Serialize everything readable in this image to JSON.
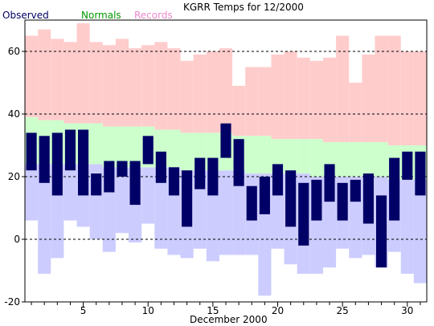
{
  "chart_data": {
    "type": "bar",
    "title": "KGRR Temps for 12/2000",
    "xlabel": "December 2000",
    "ylabel": "",
    "legend": [
      {
        "name": "Observed",
        "color": "#000066"
      },
      {
        "name": "Normals",
        "color": "#009900"
      },
      {
        "name": "Records",
        "color": "#ee88cc"
      }
    ],
    "ylim": [
      -20,
      70
    ],
    "xlim": [
      0.5,
      31.5
    ],
    "y_ticks": [
      -20,
      0,
      20,
      40,
      60
    ],
    "x_ticks": [
      5,
      10,
      15,
      20,
      25,
      30
    ],
    "grid_y": [
      0,
      20,
      40,
      60
    ],
    "colors": {
      "record_high": "#ffcccc",
      "record_low": "#ccccff",
      "normals": "#ccffcc",
      "observed": "#000066",
      "grid": "#000000"
    },
    "days": [
      1,
      2,
      3,
      4,
      5,
      6,
      7,
      8,
      9,
      10,
      11,
      12,
      13,
      14,
      15,
      16,
      17,
      18,
      19,
      20,
      21,
      22,
      23,
      24,
      25,
      26,
      27,
      28,
      29,
      30,
      31
    ],
    "record_high": [
      65,
      67,
      64,
      63,
      69,
      63,
      62,
      64,
      61,
      62,
      63,
      61,
      57,
      59,
      60,
      61,
      49,
      55,
      55,
      59,
      60,
      58,
      57,
      58,
      65,
      50,
      59,
      65,
      65,
      60,
      60
    ],
    "record_low": [
      6,
      -11,
      -6,
      6,
      4,
      0,
      -4,
      2,
      -1,
      5,
      -3,
      -5,
      -6,
      -3,
      -7,
      -5,
      -5,
      -5,
      -18,
      -3,
      -8,
      -11,
      -11,
      -9,
      -3,
      -6,
      -5,
      -9,
      -4,
      -11,
      -14
    ],
    "normal_high": [
      39,
      38,
      38,
      37,
      37,
      37,
      36,
      36,
      36,
      36,
      35,
      35,
      34,
      34,
      34,
      34,
      33,
      33,
      33,
      32,
      32,
      32,
      32,
      31,
      31,
      31,
      31,
      31,
      30,
      30,
      30
    ],
    "normal_low": [
      24,
      24,
      24,
      24,
      24,
      24,
      23,
      23,
      23,
      23,
      23,
      23,
      22,
      22,
      22,
      22,
      22,
      21,
      21,
      21,
      21,
      21,
      20,
      20,
      20,
      20,
      20,
      20,
      19,
      19,
      19
    ],
    "observed_high": [
      34,
      33,
      34,
      35,
      35,
      21,
      25,
      25,
      25,
      33,
      28,
      23,
      22,
      26,
      26,
      37,
      32,
      17,
      20,
      24,
      22,
      18,
      19,
      24,
      18,
      19,
      21,
      14,
      26,
      28,
      28
    ],
    "observed_low": [
      22,
      18,
      14,
      22,
      14,
      14,
      15,
      20,
      11,
      24,
      18,
      14,
      4,
      16,
      14,
      26,
      17,
      6,
      8,
      14,
      4,
      -2,
      6,
      12,
      6,
      12,
      5,
      -9,
      6,
      19,
      14
    ]
  }
}
